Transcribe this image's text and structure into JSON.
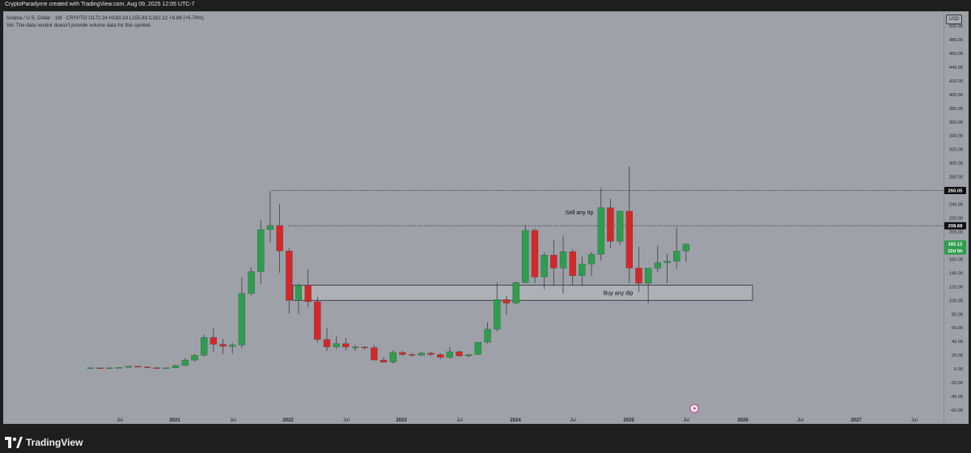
{
  "header": {
    "caption": "CryptoParadyme created with TradingView.com, Aug 09, 2025 12:05 UTC-7",
    "symbol_line": "Solana / U.S. Dollar · 1M · CRYPTO  O172.24  H183.33  L155.83  C182.12  +9.88 (+5.74%)",
    "volume_note": "Vol: The data vendor doesn't provide volume data for this symbol.",
    "currency": "USD"
  },
  "footer": {
    "brand": "TradingView"
  },
  "colors": {
    "up": "#2e9e4e",
    "down": "#d42828",
    "background": "#9ea1a8",
    "frame": "#1e1e1e",
    "last_price_badge": "#2e9e4e"
  },
  "chart_data": {
    "type": "candlestick",
    "interval": "1M",
    "symbol": "Solana / U.S. Dollar",
    "ylim": [
      -60,
      500
    ],
    "y_ticks": [
      "500.00",
      "480.00",
      "460.00",
      "440.00",
      "420.00",
      "400.00",
      "380.00",
      "360.00",
      "340.00",
      "320.00",
      "300.00",
      "280.00",
      "260.00",
      "240.00",
      "220.00",
      "200.00",
      "180.00",
      "160.00",
      "140.00",
      "120.00",
      "100.00",
      "80.00",
      "60.00",
      "40.00",
      "20.00",
      "0.00",
      "-20.00",
      "-40.00",
      "-60.00"
    ],
    "x_ticks": [
      "Jul",
      "2021",
      "Jul",
      "2022",
      "Jul",
      "2023",
      "Jul",
      "2024",
      "Jul",
      "2025",
      "Jul",
      "2026",
      "Jul",
      "2027",
      "Jul"
    ],
    "price_labels": [
      {
        "text": "260.05",
        "value": 260.05,
        "style": "dark"
      },
      {
        "text": "208.68",
        "value": 208.68,
        "style": "dark"
      },
      {
        "text": "182.12",
        "value": 182.12,
        "style": "green"
      },
      {
        "text": "22d 5h",
        "value": 172,
        "style": "green"
      }
    ],
    "horizontal_lines": [
      {
        "value": 260.05,
        "style": "dotted"
      },
      {
        "value": 208.68,
        "style": "dotted"
      }
    ],
    "zone": {
      "low": 100,
      "high": 122,
      "label": "Buy any dip"
    },
    "annotations": [
      {
        "text": "Sell any rip",
        "value": 228
      }
    ],
    "candles": [
      {
        "o": 1.5,
        "h": 1.8,
        "l": 1.2,
        "c": 1.6
      },
      {
        "o": 1.6,
        "h": 1.9,
        "l": 1.3,
        "c": 1.5
      },
      {
        "o": 1.5,
        "h": 1.8,
        "l": 1.2,
        "c": 1.5
      },
      {
        "o": 1.5,
        "h": 2.5,
        "l": 1.3,
        "c": 2.2
      },
      {
        "o": 2.2,
        "h": 4.5,
        "l": 2.0,
        "c": 4.0
      },
      {
        "o": 4.0,
        "h": 4.5,
        "l": 2.5,
        "c": 3.0
      },
      {
        "o": 3.0,
        "h": 3.5,
        "l": 1.5,
        "c": 1.8
      },
      {
        "o": 1.8,
        "h": 2.2,
        "l": 1.4,
        "c": 1.5
      },
      {
        "o": 1.5,
        "h": 2.0,
        "l": 1.2,
        "c": 1.6
      },
      {
        "o": 1.6,
        "h": 6.0,
        "l": 1.5,
        "c": 5.0
      },
      {
        "o": 5.0,
        "h": 16,
        "l": 4.5,
        "c": 13
      },
      {
        "o": 13,
        "h": 22,
        "l": 11,
        "c": 20
      },
      {
        "o": 20,
        "h": 50,
        "l": 18,
        "c": 46
      },
      {
        "o": 46,
        "h": 59,
        "l": 25,
        "c": 36
      },
      {
        "o": 36,
        "h": 44,
        "l": 22,
        "c": 33
      },
      {
        "o": 33,
        "h": 38,
        "l": 22,
        "c": 35
      },
      {
        "o": 35,
        "h": 134,
        "l": 30,
        "c": 110
      },
      {
        "o": 110,
        "h": 148,
        "l": 107,
        "c": 142
      },
      {
        "o": 142,
        "h": 217,
        "l": 124,
        "c": 203
      },
      {
        "o": 203,
        "h": 260,
        "l": 185,
        "c": 209
      },
      {
        "o": 209,
        "h": 240,
        "l": 140,
        "c": 172
      },
      {
        "o": 172,
        "h": 176,
        "l": 81,
        "c": 100
      },
      {
        "o": 100,
        "h": 125,
        "l": 80,
        "c": 122
      },
      {
        "o": 122,
        "h": 145,
        "l": 90,
        "c": 98
      },
      {
        "o": 98,
        "h": 105,
        "l": 38,
        "c": 43
      },
      {
        "o": 43,
        "h": 60,
        "l": 26,
        "c": 32
      },
      {
        "o": 32,
        "h": 48,
        "l": 29,
        "c": 37
      },
      {
        "o": 37,
        "h": 45,
        "l": 27,
        "c": 32
      },
      {
        "o": 32,
        "h": 35,
        "l": 26,
        "c": 32
      },
      {
        "o": 32,
        "h": 33,
        "l": 28,
        "c": 31
      },
      {
        "o": 31,
        "h": 35,
        "l": 15,
        "c": 13
      },
      {
        "o": 13,
        "h": 17,
        "l": 9,
        "c": 10
      },
      {
        "o": 10,
        "h": 27,
        "l": 8,
        "c": 24
      },
      {
        "o": 24,
        "h": 26,
        "l": 19,
        "c": 21
      },
      {
        "o": 21,
        "h": 24,
        "l": 18,
        "c": 20
      },
      {
        "o": 20,
        "h": 25,
        "l": 19,
        "c": 23
      },
      {
        "o": 23,
        "h": 25,
        "l": 19,
        "c": 21
      },
      {
        "o": 21,
        "h": 23,
        "l": 14,
        "c": 17
      },
      {
        "o": 17,
        "h": 32,
        "l": 15,
        "c": 25
      },
      {
        "o": 25,
        "h": 27,
        "l": 18,
        "c": 19
      },
      {
        "o": 19,
        "h": 22,
        "l": 17,
        "c": 21
      },
      {
        "o": 21,
        "h": 39,
        "l": 20,
        "c": 39
      },
      {
        "o": 39,
        "h": 68,
        "l": 37,
        "c": 58
      },
      {
        "o": 58,
        "h": 126,
        "l": 55,
        "c": 101
      },
      {
        "o": 101,
        "h": 107,
        "l": 79,
        "c": 96
      },
      {
        "o": 96,
        "h": 127,
        "l": 94,
        "c": 126
      },
      {
        "o": 126,
        "h": 210,
        "l": 125,
        "c": 202
      },
      {
        "o": 202,
        "h": 205,
        "l": 125,
        "c": 134
      },
      {
        "o": 134,
        "h": 170,
        "l": 116,
        "c": 166
      },
      {
        "o": 166,
        "h": 188,
        "l": 121,
        "c": 147
      },
      {
        "o": 147,
        "h": 194,
        "l": 110,
        "c": 171
      },
      {
        "o": 171,
        "h": 174,
        "l": 122,
        "c": 136
      },
      {
        "o": 136,
        "h": 164,
        "l": 121,
        "c": 153
      },
      {
        "o": 153,
        "h": 171,
        "l": 135,
        "c": 167
      },
      {
        "o": 167,
        "h": 264,
        "l": 158,
        "c": 235
      },
      {
        "o": 235,
        "h": 248,
        "l": 176,
        "c": 186
      },
      {
        "o": 186,
        "h": 230,
        "l": 181,
        "c": 230
      },
      {
        "o": 230,
        "h": 295,
        "l": 125,
        "c": 147
      },
      {
        "o": 147,
        "h": 178,
        "l": 112,
        "c": 125
      },
      {
        "o": 125,
        "h": 147,
        "l": 96,
        "c": 147
      },
      {
        "o": 147,
        "h": 180,
        "l": 141,
        "c": 155
      },
      {
        "o": 155,
        "h": 168,
        "l": 125,
        "c": 157
      },
      {
        "o": 157,
        "h": 206,
        "l": 146,
        "c": 172
      },
      {
        "o": 172,
        "h": 183,
        "l": 156,
        "c": 182
      }
    ]
  }
}
